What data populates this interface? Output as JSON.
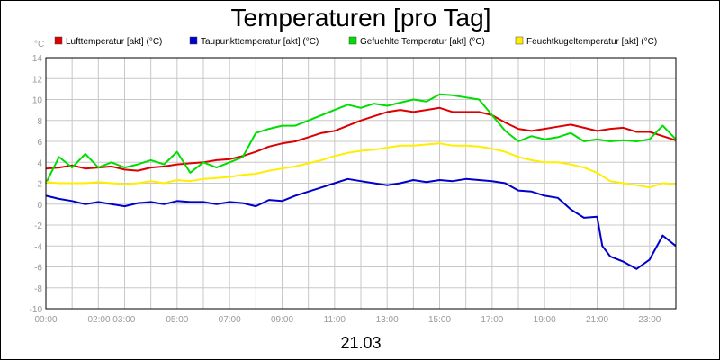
{
  "chart_data": {
    "type": "line",
    "title": "Temperaturen [pro Tag]",
    "y_unit": "°C",
    "xlabel": "21.03",
    "ylim": [
      -10,
      14
    ],
    "yticks": [
      14,
      12,
      10,
      8,
      6,
      4,
      2,
      0,
      -2,
      -4,
      -6,
      -8,
      -10
    ],
    "x_range_hours": [
      0,
      24
    ],
    "xticks": [
      {
        "h": 0,
        "label": "00:00"
      },
      {
        "h": 2.5,
        "label": "02:00 03:00"
      },
      {
        "h": 5,
        "label": "05:00"
      },
      {
        "h": 7,
        "label": "07:00"
      },
      {
        "h": 9,
        "label": "09:00"
      },
      {
        "h": 11,
        "label": "11:00"
      },
      {
        "h": 13,
        "label": "13:00"
      },
      {
        "h": 15,
        "label": "15:00"
      },
      {
        "h": 17,
        "label": "17:00"
      },
      {
        "h": 19,
        "label": "19:00"
      },
      {
        "h": 21,
        "label": "21:00"
      },
      {
        "h": 23,
        "label": "23:00"
      }
    ],
    "grid": true,
    "legend_position": "top",
    "series": [
      {
        "name": "Lufttemperatur [akt] (°C)",
        "color": "#dd0000",
        "x": [
          0,
          0.5,
          1,
          1.5,
          2,
          2.5,
          3,
          3.5,
          4,
          4.5,
          5,
          5.5,
          6,
          6.5,
          7,
          7.5,
          8,
          8.5,
          9,
          9.5,
          10,
          10.5,
          11,
          11.5,
          12,
          12.5,
          13,
          13.5,
          14,
          14.5,
          15,
          15.5,
          16,
          16.5,
          17,
          17.5,
          18,
          18.5,
          19,
          19.5,
          20,
          20.5,
          21,
          21.5,
          22,
          22.5,
          23,
          23.5,
          24
        ],
        "y": [
          3.4,
          3.5,
          3.7,
          3.4,
          3.5,
          3.6,
          3.3,
          3.2,
          3.5,
          3.6,
          3.8,
          3.9,
          4.0,
          4.2,
          4.3,
          4.6,
          5.0,
          5.5,
          5.8,
          6.0,
          6.4,
          6.8,
          7.0,
          7.5,
          8.0,
          8.4,
          8.8,
          9.0,
          8.8,
          9.0,
          9.2,
          8.8,
          8.8,
          8.8,
          8.5,
          7.8,
          7.2,
          7.0,
          7.2,
          7.4,
          7.6,
          7.3,
          7.0,
          7.2,
          7.3,
          6.9,
          6.9,
          6.5,
          6.1
        ]
      },
      {
        "name": "Taupunkttemperatur [akt] (°C)",
        "color": "#0000cc",
        "x": [
          0,
          0.5,
          1,
          1.5,
          2,
          2.5,
          3,
          3.5,
          4,
          4.5,
          5,
          5.5,
          6,
          6.5,
          7,
          7.5,
          8,
          8.5,
          9,
          9.5,
          10,
          10.5,
          11,
          11.5,
          12,
          12.5,
          13,
          13.5,
          14,
          14.5,
          15,
          15.5,
          16,
          16.5,
          17,
          17.5,
          18,
          18.5,
          19,
          19.5,
          20,
          20.5,
          21,
          21.2,
          21.5,
          22,
          22.5,
          23,
          23.5,
          24
        ],
        "y": [
          0.8,
          0.5,
          0.3,
          0.0,
          0.2,
          0.0,
          -0.2,
          0.1,
          0.2,
          0.0,
          0.3,
          0.2,
          0.2,
          0.0,
          0.2,
          0.1,
          -0.2,
          0.4,
          0.3,
          0.8,
          1.2,
          1.6,
          2.0,
          2.4,
          2.2,
          2.0,
          1.8,
          2.0,
          2.3,
          2.1,
          2.3,
          2.2,
          2.4,
          2.3,
          2.2,
          2.0,
          1.3,
          1.2,
          0.8,
          0.6,
          -0.5,
          -1.3,
          -1.2,
          -4.0,
          -5.0,
          -5.5,
          -6.2,
          -5.3,
          -3.0,
          -4.0
        ]
      },
      {
        "name": "Gefuehlte Temperatur [akt] (°C)",
        "color": "#00dd00",
        "x": [
          0,
          0.5,
          1,
          1.5,
          2,
          2.5,
          3,
          3.5,
          4,
          4.5,
          5,
          5.5,
          6,
          6.5,
          7,
          7.5,
          8,
          8.5,
          9,
          9.5,
          10,
          10.5,
          11,
          11.5,
          12,
          12.5,
          13,
          13.5,
          14,
          14.5,
          15,
          15.5,
          16,
          16.5,
          17,
          17.5,
          18,
          18.5,
          19,
          19.5,
          20,
          20.5,
          21,
          21.5,
          22,
          22.5,
          23,
          23.5,
          24
        ],
        "y": [
          2.0,
          4.5,
          3.5,
          4.8,
          3.5,
          4.0,
          3.5,
          3.8,
          4.2,
          3.8,
          5.0,
          3.0,
          4.0,
          3.5,
          4.0,
          4.5,
          6.8,
          7.2,
          7.5,
          7.5,
          8.0,
          8.5,
          9.0,
          9.5,
          9.2,
          9.6,
          9.4,
          9.7,
          10.0,
          9.8,
          10.5,
          10.4,
          10.2,
          10.0,
          8.5,
          7.0,
          6.0,
          6.5,
          6.2,
          6.4,
          6.8,
          6.0,
          6.2,
          6.0,
          6.1,
          6.0,
          6.2,
          7.5,
          6.2
        ]
      },
      {
        "name": "Feuchtkugeltemperatur [akt] (°C)",
        "color": "#ffee00",
        "x": [
          0,
          0.5,
          1,
          1.5,
          2,
          2.5,
          3,
          3.5,
          4,
          4.5,
          5,
          5.5,
          6,
          6.5,
          7,
          7.5,
          8,
          8.5,
          9,
          9.5,
          10,
          10.5,
          11,
          11.5,
          12,
          12.5,
          13,
          13.5,
          14,
          14.5,
          15,
          15.5,
          16,
          16.5,
          17,
          17.5,
          18,
          18.5,
          19,
          19.5,
          20,
          20.5,
          21,
          21.5,
          22,
          22.5,
          23,
          23.5,
          24
        ],
        "y": [
          2.1,
          2.0,
          2.0,
          2.0,
          2.1,
          2.0,
          1.9,
          2.0,
          2.2,
          2.0,
          2.3,
          2.2,
          2.4,
          2.5,
          2.6,
          2.8,
          2.9,
          3.2,
          3.4,
          3.6,
          3.9,
          4.2,
          4.6,
          4.9,
          5.1,
          5.2,
          5.4,
          5.6,
          5.6,
          5.7,
          5.8,
          5.6,
          5.6,
          5.5,
          5.3,
          5.0,
          4.5,
          4.2,
          4.0,
          4.0,
          3.8,
          3.5,
          3.0,
          2.2,
          2.0,
          1.8,
          1.6,
          2.0,
          1.9
        ]
      }
    ]
  }
}
